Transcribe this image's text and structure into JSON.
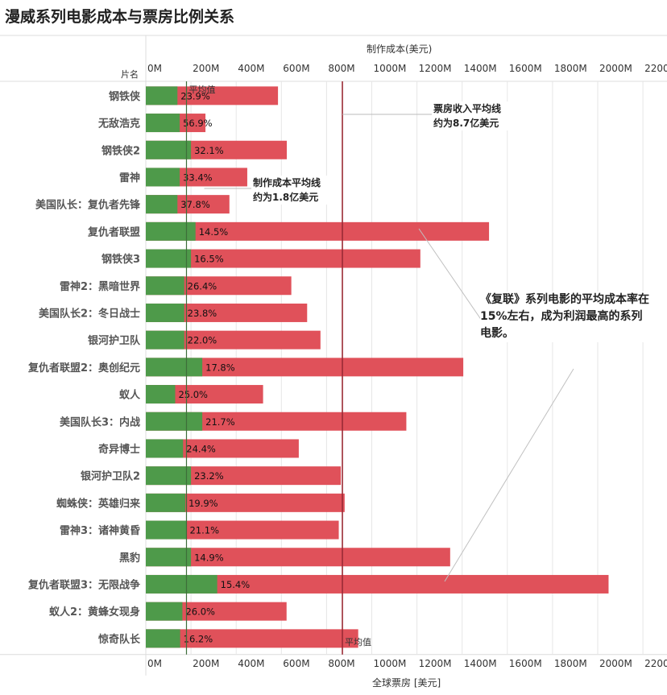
{
  "page": {
    "title": "漫威系列电影成本与票房比例关系",
    "row_header": "片名",
    "top_axis_title": "制作成本(美元)",
    "bottom_axis_title": "全球票房 [美元]"
  },
  "annotations": {
    "box_office_avg": "票房收入平均线\n约为8.7亿美元",
    "cost_avg": "制作成本平均线\n约为1.8亿美元",
    "avengers_note": "《复联》系列电影的平均成本率在15%左右，成为利润最高的系列电影。",
    "avg_label_top": "平均值",
    "avg_label_bottom": "平均值"
  },
  "colors": {
    "cost_bar": "#4e9a4a",
    "box_office_bar": "#e0515a",
    "avg_line": "#9a2a35",
    "grid": "#e6e6e6"
  },
  "chart_data": {
    "type": "bar",
    "orientation": "horizontal",
    "x_ticks": [
      "0M",
      "200M",
      "400M",
      "600M",
      "800M",
      "1000M",
      "1200M",
      "1400M",
      "1600M",
      "1800M",
      "2000M",
      "2200M"
    ],
    "xlim": [
      0,
      2250
    ],
    "unit": "M USD",
    "cost_avg": 180,
    "box_office_avg": 870,
    "movies": [
      {
        "name": "钢铁侠",
        "cost": 140,
        "box_office": 585,
        "ratio": "23.9%"
      },
      {
        "name": "无敌浩克",
        "cost": 150,
        "box_office": 264,
        "ratio": "56.9%"
      },
      {
        "name": "钢铁侠2",
        "cost": 200,
        "box_office": 624,
        "ratio": "32.1%"
      },
      {
        "name": "雷神",
        "cost": 150,
        "box_office": 449,
        "ratio": "33.4%"
      },
      {
        "name": "美国队长：复仇者先锋",
        "cost": 140,
        "box_office": 370,
        "ratio": "37.8%"
      },
      {
        "name": "复仇者联盟",
        "cost": 220,
        "box_office": 1519,
        "ratio": "14.5%"
      },
      {
        "name": "钢铁侠3",
        "cost": 200,
        "box_office": 1215,
        "ratio": "16.5%"
      },
      {
        "name": "雷神2：黑暗世界",
        "cost": 170,
        "box_office": 644,
        "ratio": "26.4%"
      },
      {
        "name": "美国队长2：冬日战士",
        "cost": 170,
        "box_office": 714,
        "ratio": "23.8%"
      },
      {
        "name": "银河护卫队",
        "cost": 170,
        "box_office": 773,
        "ratio": "22.0%"
      },
      {
        "name": "复仇者联盟2：奥创纪元",
        "cost": 250,
        "box_office": 1405,
        "ratio": "17.8%"
      },
      {
        "name": "蚁人",
        "cost": 130,
        "box_office": 519,
        "ratio": "25.0%"
      },
      {
        "name": "美国队长3：内战",
        "cost": 250,
        "box_office": 1153,
        "ratio": "21.7%"
      },
      {
        "name": "奇异博士",
        "cost": 165,
        "box_office": 677,
        "ratio": "24.4%"
      },
      {
        "name": "银河护卫队2",
        "cost": 200,
        "box_office": 863,
        "ratio": "23.2%"
      },
      {
        "name": "蜘蛛侠：英雄归来",
        "cost": 175,
        "box_office": 880,
        "ratio": "19.9%"
      },
      {
        "name": "雷神3：诸神黄昏",
        "cost": 180,
        "box_office": 854,
        "ratio": "21.1%"
      },
      {
        "name": "黑豹",
        "cost": 200,
        "box_office": 1347,
        "ratio": "14.9%"
      },
      {
        "name": "复仇者联盟3：无限战争",
        "cost": 316,
        "box_office": 2048,
        "ratio": "15.4%"
      },
      {
        "name": "蚁人2：黄蜂女现身",
        "cost": 162,
        "box_office": 623,
        "ratio": "26.0%"
      },
      {
        "name": "惊奇队长",
        "cost": 152,
        "box_office": 940,
        "ratio": "16.2%"
      }
    ]
  }
}
